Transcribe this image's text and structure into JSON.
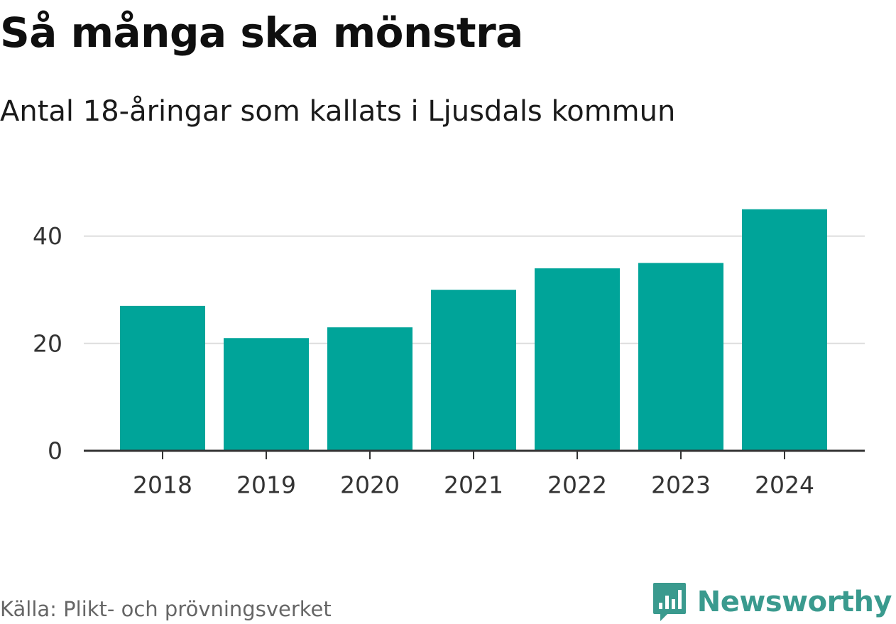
{
  "header": {
    "title": "Så många ska mönstra",
    "subtitle": "Antal 18-åringar som kallats i Ljusdals kommun"
  },
  "footer": {
    "source": "Källa: Plikt- och prövningsverket",
    "brand": "Newsworthy",
    "brand_icon": "newsworthy-logo-icon"
  },
  "colors": {
    "bar": "#00a499",
    "grid": "#dddddd",
    "axis": "#333333",
    "text": "#333333",
    "brand": "#3a9a8e"
  },
  "chart_data": {
    "type": "bar",
    "title": "Så många ska mönstra",
    "subtitle": "Antal 18-åringar som kallats i Ljusdals kommun",
    "categories": [
      "2018",
      "2019",
      "2020",
      "2021",
      "2022",
      "2023",
      "2024"
    ],
    "values": [
      27,
      21,
      23,
      30,
      34,
      35,
      45
    ],
    "xlabel": "",
    "ylabel": "",
    "ylim": [
      0,
      50
    ],
    "yticks": [
      0,
      20,
      40
    ],
    "grid": true
  }
}
